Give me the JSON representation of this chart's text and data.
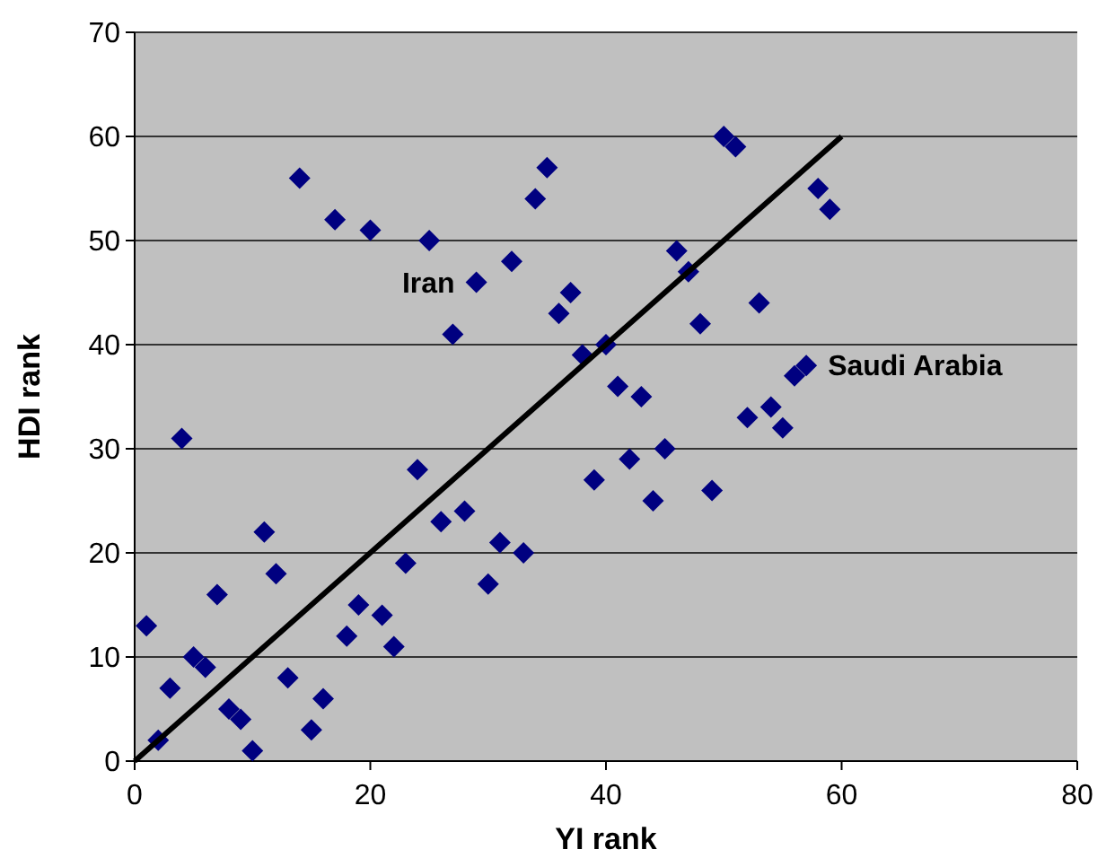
{
  "chart_data": {
    "type": "scatter",
    "xlabel": "YI rank",
    "ylabel": "HDI rank",
    "xlim": [
      0,
      80
    ],
    "ylim": [
      0,
      70
    ],
    "xticks": [
      0,
      20,
      40,
      60,
      80
    ],
    "yticks": [
      0,
      10,
      20,
      30,
      40,
      50,
      60,
      70
    ],
    "grid": "y",
    "series": [
      {
        "color": "#000080",
        "marker": "diamond",
        "x": [
          1,
          2,
          3,
          4,
          5,
          6,
          7,
          8,
          9,
          10,
          11,
          12,
          13,
          14,
          15,
          16,
          17,
          18,
          19,
          20,
          21,
          22,
          23,
          24,
          25,
          26,
          27,
          28,
          29,
          30,
          31,
          32,
          33,
          34,
          35,
          36,
          37,
          38,
          39,
          40,
          41,
          42,
          43,
          44,
          45,
          46,
          47,
          48,
          49,
          50,
          51,
          52,
          53,
          54,
          55,
          56,
          57,
          58,
          59
        ],
        "values": [
          13,
          2,
          7,
          31,
          10,
          9,
          16,
          5,
          4,
          1,
          22,
          18,
          8,
          56,
          3,
          6,
          52,
          12,
          15,
          51,
          14,
          11,
          19,
          28,
          50,
          23,
          41,
          24,
          46,
          17,
          21,
          48,
          20,
          54,
          57,
          43,
          45,
          39,
          27,
          40,
          36,
          29,
          35,
          25,
          30,
          49,
          47,
          42,
          26,
          60,
          59,
          33,
          44,
          34,
          32,
          37,
          38,
          55,
          53
        ]
      },
      {
        "type": "line",
        "color": "#000000",
        "x": [
          0,
          60
        ],
        "values": [
          0,
          60
        ],
        "marker": "none"
      }
    ],
    "annotations": [
      {
        "text": "Iran",
        "x": 29,
        "y": 46
      },
      {
        "text": "Saudi Arabia",
        "x": 57,
        "y": 38
      }
    ]
  }
}
